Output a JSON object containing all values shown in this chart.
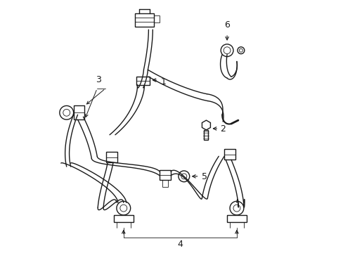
{
  "background_color": "#ffffff",
  "line_color": "#1a1a1a",
  "lw": 1.0,
  "tlw": 0.6,
  "fs": 9,
  "fig_width": 4.89,
  "fig_height": 3.6,
  "dpi": 100
}
